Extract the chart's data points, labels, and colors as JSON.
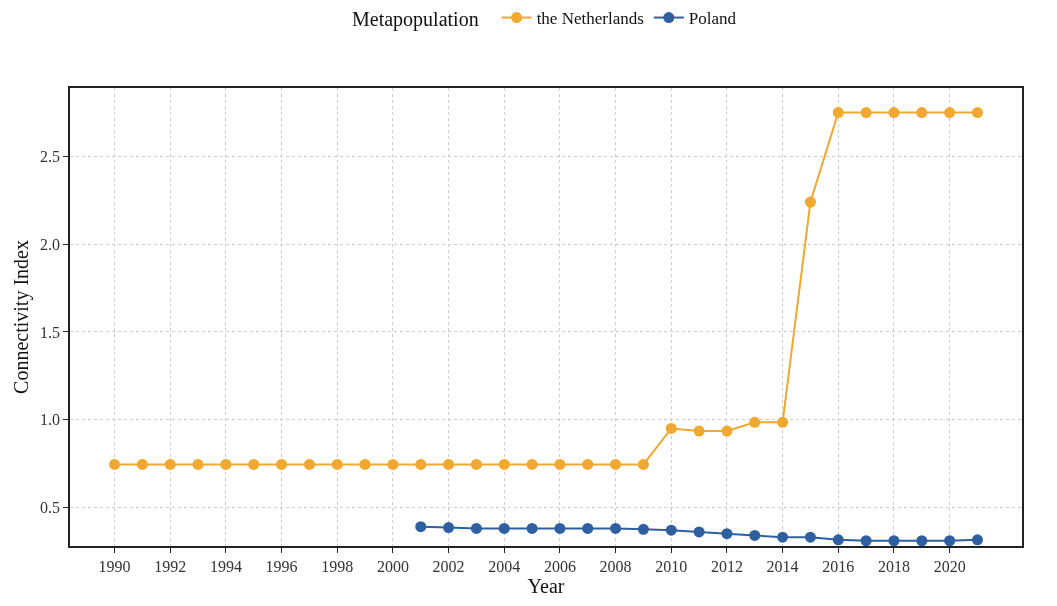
{
  "chart_data": {
    "type": "line",
    "xlabel": "Year",
    "ylabel": "Connectivity Index",
    "legend_title": "Metapopulation",
    "legend": "top",
    "grid": true,
    "marker": "circle",
    "line_style": "solid",
    "xlim": [
      1988.4,
      2022.6
    ],
    "xticks": [
      1990,
      1992,
      1994,
      1996,
      1998,
      2000,
      2002,
      2004,
      2006,
      2008,
      2010,
      2012,
      2014,
      2016,
      2018,
      2020
    ],
    "ylim": [
      0.28,
      2.89
    ],
    "yticks": [
      {
        "value": 0.5,
        "label": "0.5"
      },
      {
        "value": 1.0,
        "label": "1.0"
      },
      {
        "value": 1.5,
        "label": "1.5"
      },
      {
        "value": 2.0,
        "label": "2.0"
      },
      {
        "value": 2.5,
        "label": "2.5"
      }
    ],
    "series": [
      {
        "name": "the Netherlands",
        "color": "#f0a830",
        "x": [
          1990,
          1991,
          1992,
          1993,
          1994,
          1995,
          1996,
          1997,
          1998,
          1999,
          2000,
          2001,
          2002,
          2003,
          2004,
          2005,
          2006,
          2007,
          2008,
          2009,
          2010,
          2011,
          2012,
          2013,
          2014,
          2015,
          2016,
          2017,
          2018,
          2019,
          2020,
          2021
        ],
        "values": [
          0.745,
          0.745,
          0.745,
          0.745,
          0.745,
          0.745,
          0.745,
          0.745,
          0.745,
          0.745,
          0.745,
          0.745,
          0.745,
          0.745,
          0.745,
          0.745,
          0.745,
          0.745,
          0.745,
          0.745,
          0.95,
          0.935,
          0.935,
          0.985,
          0.985,
          2.24,
          2.75,
          2.75,
          2.75,
          2.75,
          2.75,
          2.75
        ]
      },
      {
        "name": "Poland",
        "color": "#2e5fa0",
        "x": [
          2001,
          2002,
          2003,
          2004,
          2005,
          2006,
          2007,
          2008,
          2009,
          2010,
          2011,
          2012,
          2013,
          2014,
          2015,
          2016,
          2017,
          2018,
          2019,
          2020,
          2021
        ],
        "values": [
          0.39,
          0.385,
          0.38,
          0.38,
          0.38,
          0.38,
          0.38,
          0.38,
          0.375,
          0.37,
          0.36,
          0.35,
          0.34,
          0.33,
          0.33,
          0.315,
          0.31,
          0.31,
          0.31,
          0.31,
          0.315
        ]
      }
    ]
  }
}
